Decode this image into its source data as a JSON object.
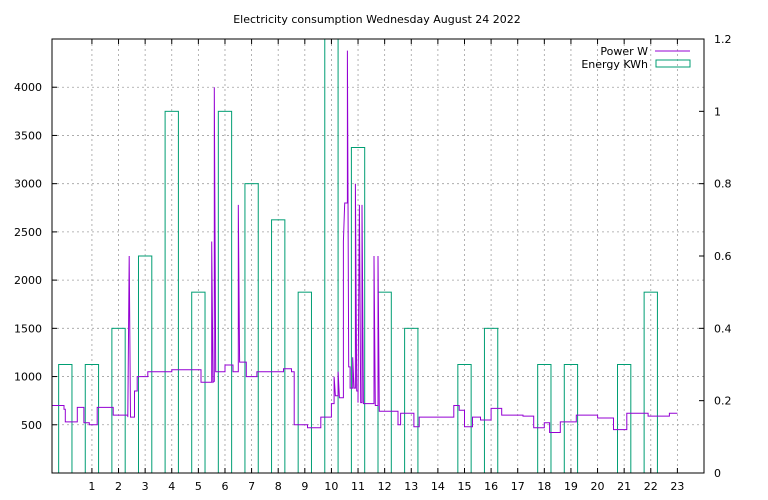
{
  "chart_data": {
    "type": "bar+line",
    "title": "Electricity consumption Wednesday August 24 2022",
    "x": {
      "range": [
        -0.5,
        24.0
      ],
      "ticks": [
        1,
        2,
        3,
        4,
        5,
        6,
        7,
        8,
        9,
        10,
        11,
        12,
        13,
        14,
        15,
        16,
        17,
        18,
        19,
        20,
        21,
        22,
        23
      ],
      "tick_labels": [
        "1",
        "2",
        "3",
        "4",
        "5",
        "6",
        "7",
        "8",
        "9",
        "10",
        "11",
        "12",
        "13",
        "14",
        "15",
        "16",
        "17",
        "18",
        "19",
        "20",
        "21",
        "22",
        "23"
      ],
      "grid": true
    },
    "y_left": {
      "range": [
        0,
        4500
      ],
      "ticks": [
        500,
        1000,
        1500,
        2000,
        2500,
        3000,
        3500,
        4000
      ],
      "tick_labels": [
        "500",
        "1000",
        "1500",
        "2000",
        "2500",
        "3000",
        "3500",
        "4000"
      ],
      "grid": true
    },
    "y_right": {
      "range": [
        0,
        1.2
      ],
      "ticks": [
        0,
        0.2,
        0.4,
        0.6,
        0.8,
        1,
        1.2
      ],
      "tick_labels": [
        "0",
        "0.2",
        "0.4",
        "0.6",
        "0.8",
        "1",
        "1.2"
      ]
    },
    "legend": {
      "position": "top-right"
    },
    "series": [
      {
        "name": "Energy KWh",
        "kind": "boxes",
        "axis": "right",
        "color": "#009e73",
        "x": [
          0,
          1,
          2,
          3,
          4,
          5,
          6,
          7,
          8,
          9,
          10,
          11,
          12,
          13,
          14,
          15,
          16,
          17,
          18,
          19,
          20,
          21,
          22,
          23
        ],
        "values": [
          0.3,
          0.3,
          0.4,
          0.6,
          1.0,
          0.5,
          1.0,
          0.8,
          0.7,
          0.5,
          1.2,
          0.9,
          0.5,
          0.4,
          0,
          0.3,
          0.4,
          0,
          0.3,
          0.3,
          0,
          0.3,
          0.5,
          0
        ]
      },
      {
        "name": "Power W",
        "kind": "line",
        "axis": "left",
        "color": "#9400d3",
        "points": [
          [
            -0.5,
            700
          ],
          [
            -0.05,
            700
          ],
          [
            -0.05,
            660
          ],
          [
            0.0,
            660
          ],
          [
            0.0,
            530
          ],
          [
            0.45,
            530
          ],
          [
            0.45,
            680
          ],
          [
            0.7,
            680
          ],
          [
            0.7,
            520
          ],
          [
            0.9,
            520
          ],
          [
            0.9,
            500
          ],
          [
            1.2,
            500
          ],
          [
            1.2,
            680
          ],
          [
            1.8,
            680
          ],
          [
            1.8,
            600
          ],
          [
            2.35,
            600
          ],
          [
            2.35,
            580
          ],
          [
            2.4,
            2250
          ],
          [
            2.45,
            580
          ],
          [
            2.6,
            580
          ],
          [
            2.6,
            850
          ],
          [
            2.7,
            850
          ],
          [
            2.7,
            1000
          ],
          [
            3.1,
            1000
          ],
          [
            3.1,
            1050
          ],
          [
            4.0,
            1050
          ],
          [
            4.0,
            1070
          ],
          [
            5.1,
            1070
          ],
          [
            5.1,
            940
          ],
          [
            5.5,
            940
          ],
          [
            5.5,
            2400
          ],
          [
            5.55,
            940
          ],
          [
            5.6,
            950
          ],
          [
            5.6,
            4000
          ],
          [
            5.65,
            1050
          ],
          [
            6.0,
            1050
          ],
          [
            6.0,
            1120
          ],
          [
            6.3,
            1120
          ],
          [
            6.3,
            1050
          ],
          [
            6.5,
            1050
          ],
          [
            6.5,
            2780
          ],
          [
            6.55,
            1150
          ],
          [
            6.8,
            1150
          ],
          [
            6.8,
            1000
          ],
          [
            7.2,
            1000
          ],
          [
            7.2,
            1050
          ],
          [
            8.2,
            1050
          ],
          [
            8.2,
            1080
          ],
          [
            8.5,
            1080
          ],
          [
            8.5,
            1050
          ],
          [
            8.6,
            1050
          ],
          [
            8.6,
            500
          ],
          [
            9.1,
            500
          ],
          [
            9.1,
            470
          ],
          [
            9.6,
            470
          ],
          [
            9.6,
            580
          ],
          [
            10.0,
            580
          ],
          [
            10.0,
            720
          ],
          [
            10.1,
            720
          ],
          [
            10.1,
            1000
          ],
          [
            10.15,
            800
          ],
          [
            10.25,
            800
          ],
          [
            10.25,
            1050
          ],
          [
            10.3,
            780
          ],
          [
            10.45,
            780
          ],
          [
            10.45,
            2400
          ],
          [
            10.5,
            2800
          ],
          [
            10.6,
            2800
          ],
          [
            10.6,
            4380
          ],
          [
            10.65,
            1100
          ],
          [
            10.7,
            1100
          ],
          [
            10.7,
            880
          ],
          [
            10.8,
            880
          ],
          [
            10.8,
            1200
          ],
          [
            10.85,
            880
          ],
          [
            10.9,
            880
          ],
          [
            10.9,
            3000
          ],
          [
            10.95,
            850
          ],
          [
            11.0,
            850
          ],
          [
            11.0,
            730
          ],
          [
            11.05,
            2780
          ],
          [
            11.1,
            730
          ],
          [
            11.15,
            730
          ],
          [
            11.15,
            2780
          ],
          [
            11.2,
            720
          ],
          [
            11.6,
            720
          ],
          [
            11.6,
            2250
          ],
          [
            11.65,
            700
          ],
          [
            11.75,
            700
          ],
          [
            11.75,
            2250
          ],
          [
            11.8,
            640
          ],
          [
            12.5,
            640
          ],
          [
            12.5,
            500
          ],
          [
            12.6,
            500
          ],
          [
            12.6,
            620
          ],
          [
            13.1,
            620
          ],
          [
            13.1,
            480
          ],
          [
            13.3,
            480
          ],
          [
            13.3,
            580
          ],
          [
            14.6,
            580
          ],
          [
            14.6,
            700
          ],
          [
            14.8,
            700
          ],
          [
            14.8,
            650
          ],
          [
            15.0,
            650
          ],
          [
            15.0,
            480
          ],
          [
            15.3,
            480
          ],
          [
            15.3,
            580
          ],
          [
            15.6,
            580
          ],
          [
            15.6,
            550
          ],
          [
            16.0,
            550
          ],
          [
            16.0,
            670
          ],
          [
            16.4,
            670
          ],
          [
            16.4,
            600
          ],
          [
            17.2,
            600
          ],
          [
            17.2,
            590
          ],
          [
            17.6,
            590
          ],
          [
            17.6,
            470
          ],
          [
            18.0,
            470
          ],
          [
            18.0,
            520
          ],
          [
            18.2,
            520
          ],
          [
            18.2,
            420
          ],
          [
            18.6,
            420
          ],
          [
            18.6,
            530
          ],
          [
            19.2,
            530
          ],
          [
            19.2,
            600
          ],
          [
            20.0,
            600
          ],
          [
            20.0,
            570
          ],
          [
            20.6,
            570
          ],
          [
            20.6,
            450
          ],
          [
            21.1,
            450
          ],
          [
            21.1,
            620
          ],
          [
            21.9,
            620
          ],
          [
            21.9,
            590
          ],
          [
            22.7,
            590
          ],
          [
            22.7,
            620
          ],
          [
            23.0,
            620
          ],
          [
            23.0,
            620
          ]
        ]
      }
    ]
  }
}
